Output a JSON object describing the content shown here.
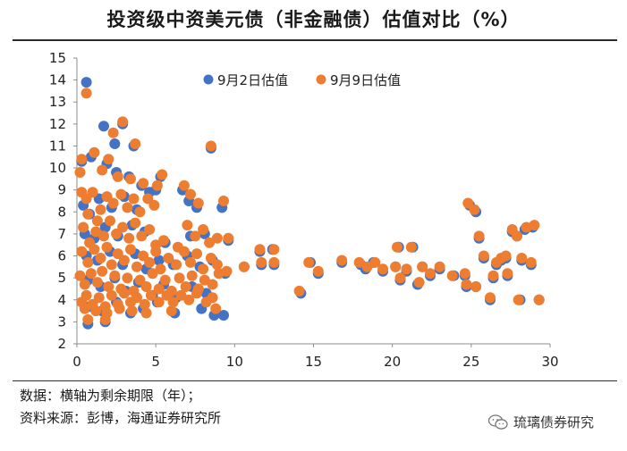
{
  "title": "投资级中资美元债（非金融债）估值对比（%）",
  "notes": {
    "data_note": "数据：横轴为剩余期限（年）；",
    "source_note": "资料来源：彭博，海通证券研究所"
  },
  "watermark": {
    "text": "琉璃债券研究",
    "icon": "wechat-icon"
  },
  "chart_data": {
    "type": "scatter",
    "title": "投资级中资美元债（非金融债）估值对比（%）",
    "xlabel": "",
    "ylabel": "",
    "xlim": [
      0,
      30
    ],
    "ylim": [
      2,
      15
    ],
    "xticks": [
      0,
      5,
      10,
      15,
      20,
      25,
      30
    ],
    "yticks": [
      2,
      3,
      4,
      5,
      6,
      7,
      8,
      9,
      10,
      11,
      12,
      13,
      14,
      15
    ],
    "grid": false,
    "legend_position": "top",
    "series": [
      {
        "name": "9月2日估值",
        "color": "#4472C4",
        "points": [
          [
            0.6,
            13.9
          ],
          [
            1.7,
            11.9
          ],
          [
            2.4,
            11.1
          ],
          [
            2.9,
            12.0
          ],
          [
            3.6,
            11.0
          ],
          [
            8.5,
            10.9
          ],
          [
            0.3,
            10.3
          ],
          [
            0.9,
            10.5
          ],
          [
            1.9,
            10.2
          ],
          [
            2.5,
            9.8
          ],
          [
            3.3,
            9.6
          ],
          [
            4.1,
            9.2
          ],
          [
            5.0,
            9.0
          ],
          [
            5.3,
            9.6
          ],
          [
            0.4,
            8.3
          ],
          [
            0.8,
            7.9
          ],
          [
            1.4,
            8.6
          ],
          [
            2.2,
            8.2
          ],
          [
            3.0,
            8.7
          ],
          [
            3.8,
            8.1
          ],
          [
            4.6,
            8.9
          ],
          [
            6.7,
            9.0
          ],
          [
            7.1,
            8.5
          ],
          [
            7.6,
            8.2
          ],
          [
            9.2,
            8.2
          ],
          [
            0.5,
            7.0
          ],
          [
            1.1,
            6.8
          ],
          [
            1.8,
            7.3
          ],
          [
            2.6,
            6.9
          ],
          [
            3.5,
            7.4
          ],
          [
            4.3,
            7.1
          ],
          [
            5.6,
            6.6
          ],
          [
            7.2,
            6.9
          ],
          [
            8.1,
            7.0
          ],
          [
            9.6,
            6.7
          ],
          [
            0.6,
            6.0
          ],
          [
            1.3,
            5.8
          ],
          [
            2.1,
            6.2
          ],
          [
            2.9,
            5.6
          ],
          [
            3.7,
            6.1
          ],
          [
            4.4,
            5.4
          ],
          [
            5.2,
            5.8
          ],
          [
            6.1,
            5.6
          ],
          [
            7.0,
            6.0
          ],
          [
            7.8,
            5.5
          ],
          [
            8.6,
            5.8
          ],
          [
            9.4,
            5.2
          ],
          [
            0.7,
            4.9
          ],
          [
            1.5,
            4.6
          ],
          [
            2.4,
            5.0
          ],
          [
            3.1,
            4.4
          ],
          [
            3.9,
            4.8
          ],
          [
            4.8,
            4.2
          ],
          [
            5.5,
            4.7
          ],
          [
            6.3,
            4.1
          ],
          [
            7.3,
            4.6
          ],
          [
            8.2,
            4.3
          ],
          [
            0.8,
            3.7
          ],
          [
            1.6,
            3.5
          ],
          [
            2.5,
            3.9
          ],
          [
            3.4,
            3.4
          ],
          [
            4.2,
            3.6
          ],
          [
            5.1,
            3.9
          ],
          [
            6.2,
            3.4
          ],
          [
            7.9,
            3.6
          ],
          [
            8.7,
            3.3
          ],
          [
            9.3,
            3.3
          ],
          [
            0.7,
            2.9
          ],
          [
            1.8,
            3.0
          ],
          [
            10.6,
            5.5
          ],
          [
            11.6,
            6.2
          ],
          [
            11.7,
            5.6
          ],
          [
            12.4,
            6.3
          ],
          [
            12.5,
            5.6
          ],
          [
            14.2,
            4.3
          ],
          [
            14.8,
            5.7
          ],
          [
            15.3,
            5.2
          ],
          [
            16.8,
            5.7
          ],
          [
            18.0,
            5.6
          ],
          [
            18.3,
            5.4
          ],
          [
            18.8,
            5.7
          ],
          [
            19.4,
            5.3
          ],
          [
            20.2,
            5.5
          ],
          [
            20.4,
            6.4
          ],
          [
            20.9,
            5.3
          ],
          [
            21.3,
            6.4
          ],
          [
            21.6,
            4.7
          ],
          [
            21.9,
            5.5
          ],
          [
            22.4,
            5.1
          ],
          [
            23.0,
            5.4
          ],
          [
            23.9,
            5.1
          ],
          [
            24.7,
            4.6
          ],
          [
            24.9,
            8.3
          ],
          [
            25.3,
            8.0
          ],
          [
            25.5,
            6.8
          ],
          [
            25.8,
            5.9
          ],
          [
            26.2,
            4.0
          ],
          [
            26.4,
            5.0
          ],
          [
            26.9,
            5.8
          ],
          [
            27.3,
            5.1
          ],
          [
            27.6,
            7.1
          ],
          [
            27.9,
            6.9
          ],
          [
            28.2,
            5.8
          ],
          [
            28.4,
            7.2
          ],
          [
            28.9,
            7.3
          ],
          [
            28.1,
            4.0
          ],
          [
            29.3,
            4.0
          ],
          [
            28.8,
            5.6
          ],
          [
            24.6,
            5.1
          ],
          [
            26.6,
            5.6
          ],
          [
            27.2,
            5.9
          ],
          [
            25.3,
            4.6
          ],
          [
            20.5,
            4.9
          ]
        ]
      },
      {
        "name": "9月9日估值",
        "color": "#ED7D31",
        "points": [
          [
            0.6,
            13.4
          ],
          [
            2.9,
            12.1
          ],
          [
            2.3,
            11.6
          ],
          [
            3.7,
            11.1
          ],
          [
            8.5,
            11.0
          ],
          [
            0.3,
            10.4
          ],
          [
            1.1,
            10.7
          ],
          [
            2.0,
            10.4
          ],
          [
            2.6,
            9.6
          ],
          [
            3.4,
            9.5
          ],
          [
            4.2,
            9.3
          ],
          [
            5.1,
            9.2
          ],
          [
            5.4,
            9.7
          ],
          [
            0.2,
            9.8
          ],
          [
            1.6,
            9.9
          ],
          [
            0.3,
            8.9
          ],
          [
            0.6,
            8.6
          ],
          [
            1.0,
            8.9
          ],
          [
            1.5,
            8.1
          ],
          [
            1.9,
            8.7
          ],
          [
            2.3,
            8.4
          ],
          [
            2.8,
            8.8
          ],
          [
            3.2,
            8.2
          ],
          [
            3.6,
            8.6
          ],
          [
            4.0,
            8.0
          ],
          [
            4.5,
            8.6
          ],
          [
            4.9,
            8.3
          ],
          [
            6.8,
            9.2
          ],
          [
            7.2,
            8.8
          ],
          [
            7.7,
            8.4
          ],
          [
            9.3,
            8.5
          ],
          [
            0.7,
            7.9
          ],
          [
            1.3,
            7.6
          ],
          [
            0.4,
            7.3
          ],
          [
            0.8,
            6.6
          ],
          [
            1.2,
            7.1
          ],
          [
            1.7,
            6.9
          ],
          [
            2.1,
            7.6
          ],
          [
            2.5,
            7.0
          ],
          [
            2.9,
            7.3
          ],
          [
            3.3,
            6.8
          ],
          [
            3.7,
            7.5
          ],
          [
            4.1,
            6.9
          ],
          [
            4.6,
            7.2
          ],
          [
            5.0,
            6.5
          ],
          [
            5.5,
            6.7
          ],
          [
            6.4,
            6.4
          ],
          [
            7.0,
            7.4
          ],
          [
            7.5,
            6.9
          ],
          [
            8.0,
            7.2
          ],
          [
            8.4,
            6.6
          ],
          [
            8.9,
            6.8
          ],
          [
            9.6,
            6.8
          ],
          [
            0.3,
            6.2
          ],
          [
            0.7,
            5.7
          ],
          [
            1.1,
            6.3
          ],
          [
            1.5,
            5.9
          ],
          [
            1.9,
            6.4
          ],
          [
            2.2,
            5.6
          ],
          [
            2.6,
            6.1
          ],
          [
            3.0,
            5.8
          ],
          [
            3.4,
            6.3
          ],
          [
            3.8,
            5.5
          ],
          [
            4.2,
            6.0
          ],
          [
            4.6,
            5.7
          ],
          [
            5.0,
            6.2
          ],
          [
            5.3,
            5.4
          ],
          [
            5.8,
            5.9
          ],
          [
            6.3,
            5.6
          ],
          [
            6.8,
            6.2
          ],
          [
            7.2,
            5.7
          ],
          [
            7.6,
            6.1
          ],
          [
            8.0,
            5.4
          ],
          [
            8.5,
            5.9
          ],
          [
            8.9,
            5.6
          ],
          [
            9.5,
            5.3
          ],
          [
            0.2,
            5.1
          ],
          [
            0.5,
            4.7
          ],
          [
            0.9,
            5.2
          ],
          [
            1.3,
            4.8
          ],
          [
            1.6,
            5.3
          ],
          [
            2.0,
            4.6
          ],
          [
            2.4,
            5.1
          ],
          [
            2.8,
            4.5
          ],
          [
            3.2,
            5.0
          ],
          [
            3.6,
            4.4
          ],
          [
            4.0,
            4.9
          ],
          [
            4.4,
            4.6
          ],
          [
            4.8,
            5.2
          ],
          [
            5.2,
            4.5
          ],
          [
            5.6,
            4.9
          ],
          [
            6.0,
            4.4
          ],
          [
            6.5,
            5.0
          ],
          [
            6.9,
            4.6
          ],
          [
            7.3,
            5.1
          ],
          [
            7.7,
            4.5
          ],
          [
            8.1,
            4.9
          ],
          [
            8.6,
            4.7
          ],
          [
            9.0,
            5.2
          ],
          [
            0.3,
            3.9
          ],
          [
            0.6,
            4.2
          ],
          [
            1.0,
            3.8
          ],
          [
            1.4,
            4.1
          ],
          [
            1.8,
            3.7
          ],
          [
            2.2,
            4.2
          ],
          [
            2.6,
            3.8
          ],
          [
            3.0,
            4.3
          ],
          [
            3.4,
            3.9
          ],
          [
            3.8,
            4.1
          ],
          [
            4.3,
            3.8
          ],
          [
            4.7,
            4.2
          ],
          [
            5.2,
            3.9
          ],
          [
            5.7,
            4.2
          ],
          [
            6.1,
            3.9
          ],
          [
            6.6,
            4.2
          ],
          [
            7.1,
            4.0
          ],
          [
            7.6,
            4.3
          ],
          [
            8.2,
            3.9
          ],
          [
            8.6,
            4.1
          ],
          [
            0.5,
            3.6
          ],
          [
            1.2,
            3.5
          ],
          [
            1.9,
            3.4
          ],
          [
            2.7,
            3.6
          ],
          [
            3.5,
            3.5
          ],
          [
            4.4,
            3.4
          ],
          [
            6.0,
            3.5
          ],
          [
            8.8,
            3.6
          ],
          [
            0.7,
            3.1
          ],
          [
            1.8,
            3.1
          ],
          [
            10.6,
            5.5
          ],
          [
            11.6,
            6.3
          ],
          [
            11.7,
            5.7
          ],
          [
            12.5,
            6.3
          ],
          [
            12.5,
            5.7
          ],
          [
            14.1,
            4.4
          ],
          [
            14.7,
            5.7
          ],
          [
            15.3,
            5.3
          ],
          [
            16.8,
            5.8
          ],
          [
            17.9,
            5.7
          ],
          [
            18.4,
            5.5
          ],
          [
            18.9,
            5.7
          ],
          [
            19.4,
            5.4
          ],
          [
            20.2,
            5.5
          ],
          [
            20.3,
            6.4
          ],
          [
            20.9,
            5.4
          ],
          [
            21.2,
            6.4
          ],
          [
            21.7,
            4.8
          ],
          [
            21.9,
            5.5
          ],
          [
            22.4,
            5.2
          ],
          [
            23.0,
            5.5
          ],
          [
            23.8,
            5.1
          ],
          [
            24.7,
            4.7
          ],
          [
            24.8,
            8.4
          ],
          [
            25.2,
            8.1
          ],
          [
            25.5,
            6.9
          ],
          [
            25.8,
            6.0
          ],
          [
            26.2,
            4.1
          ],
          [
            26.4,
            5.1
          ],
          [
            26.9,
            5.9
          ],
          [
            27.3,
            5.2
          ],
          [
            27.6,
            7.2
          ],
          [
            27.9,
            6.9
          ],
          [
            28.2,
            5.9
          ],
          [
            28.5,
            7.3
          ],
          [
            29.0,
            7.4
          ],
          [
            28.0,
            4.0
          ],
          [
            29.3,
            4.0
          ],
          [
            28.8,
            5.7
          ],
          [
            24.6,
            5.2
          ],
          [
            26.6,
            5.7
          ],
          [
            27.2,
            6.0
          ],
          [
            25.3,
            4.6
          ],
          [
            20.5,
            5.0
          ]
        ]
      }
    ]
  }
}
